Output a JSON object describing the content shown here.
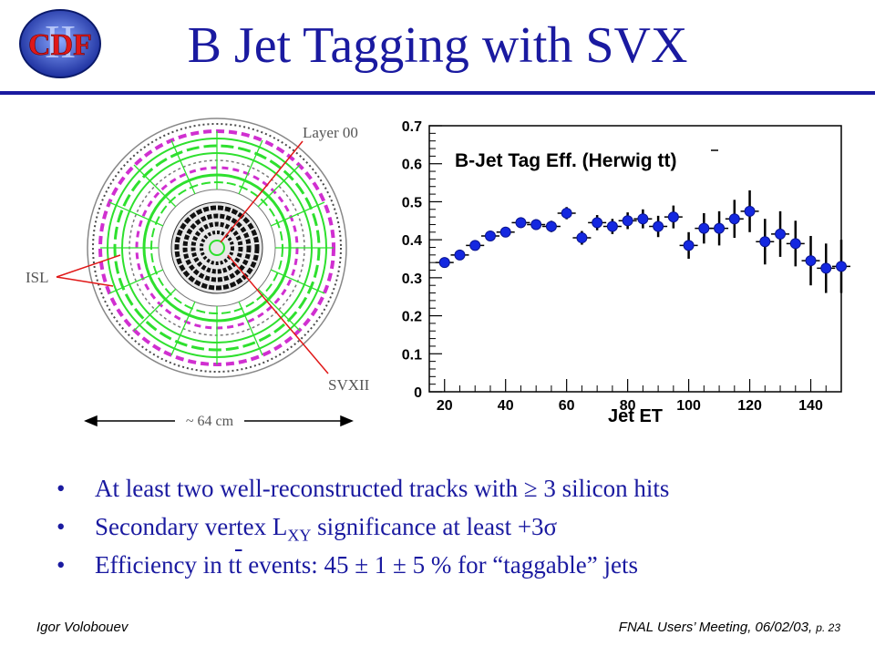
{
  "slide": {
    "title": "B Jet Tagging with SVX",
    "logo_text": "CDF",
    "logo_numeral": "II"
  },
  "detector": {
    "label_layer00": "Layer 00",
    "label_isl": "ISL",
    "label_svx": "SVXII",
    "label_scale": "~ 64 cm"
  },
  "chart_data": {
    "type": "scatter",
    "title": "B-Jet Tag Eff. (Herwig tt)",
    "xlabel": "Jet ET",
    "ylabel": "",
    "xlim": [
      15,
      150
    ],
    "ylim": [
      0,
      0.7
    ],
    "xticks": [
      20,
      40,
      60,
      80,
      100,
      120,
      140
    ],
    "yticks": [
      0,
      0.1,
      0.2,
      0.3,
      0.4,
      0.5,
      0.6,
      0.7
    ],
    "series": [
      {
        "x": [
          20,
          25,
          30,
          35,
          40,
          45,
          50,
          55,
          60,
          65,
          70,
          75,
          80,
          85,
          90,
          95,
          100,
          105,
          110,
          115,
          120,
          125,
          130,
          135,
          140,
          145,
          150
        ],
        "y": [
          0.34,
          0.36,
          0.385,
          0.41,
          0.42,
          0.445,
          0.44,
          0.435,
          0.47,
          0.405,
          0.445,
          0.435,
          0.45,
          0.455,
          0.435,
          0.46,
          0.385,
          0.43,
          0.43,
          0.455,
          0.475,
          0.395,
          0.415,
          0.39,
          0.345,
          0.325,
          0.33
        ],
        "err": [
          0.01,
          0.01,
          0.012,
          0.012,
          0.013,
          0.014,
          0.014,
          0.015,
          0.016,
          0.018,
          0.02,
          0.02,
          0.022,
          0.025,
          0.028,
          0.03,
          0.035,
          0.04,
          0.045,
          0.05,
          0.055,
          0.06,
          0.06,
          0.06,
          0.065,
          0.065,
          0.07
        ]
      }
    ]
  },
  "bullets": {
    "b1": "At least two well-reconstructed tracks with ≥ 3 silicon hits",
    "b2_pre": "Secondary vertex L",
    "b2_sub": "XY",
    "b2_post": " significance  at least +3σ",
    "b3_pre": "Efficiency in t",
    "b3_tbar": "t",
    "b3_post": " events:  45 ± 1 ± 5 %  for “taggable” jets"
  },
  "footer": {
    "left": "Igor Volobouev",
    "right": "FNAL Users’ Meeting, 06/02/03,",
    "page": "p. 23"
  }
}
